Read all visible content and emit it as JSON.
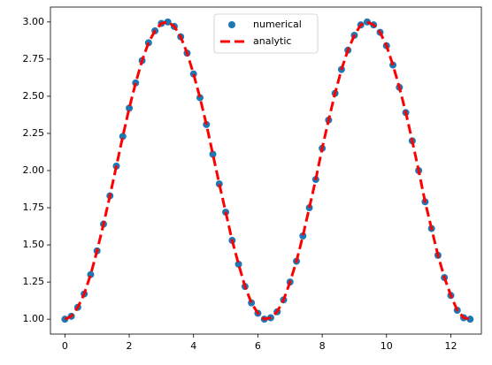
{
  "chart_data": {
    "type": "line",
    "x": [
      0,
      0.2,
      0.4,
      0.6,
      0.8,
      1.0,
      1.2,
      1.4,
      1.6,
      1.8,
      2.0,
      2.2,
      2.4,
      2.6,
      2.8,
      3.0,
      3.2,
      3.4,
      3.6,
      3.8,
      4.0,
      4.2,
      4.4,
      4.6,
      4.8,
      5.0,
      5.2,
      5.4,
      5.6,
      5.8,
      6.0,
      6.2,
      6.4,
      6.6,
      6.8,
      7.0,
      7.2,
      7.4,
      7.6,
      7.8,
      8.0,
      8.2,
      8.4,
      8.6,
      8.8,
      9.0,
      9.2,
      9.4,
      9.6,
      9.8,
      10.0,
      10.2,
      10.4,
      10.6,
      10.8,
      11.0,
      11.2,
      11.4,
      11.6,
      11.8,
      12.0,
      12.2,
      12.4,
      12.6
    ],
    "series": [
      {
        "name": "numerical",
        "color": "#1f77b4",
        "style": "markers",
        "values": [
          1.0,
          1.02,
          1.08,
          1.17,
          1.3,
          1.46,
          1.64,
          1.83,
          2.03,
          2.23,
          2.42,
          2.59,
          2.74,
          2.86,
          2.94,
          2.99,
          3.0,
          2.97,
          2.9,
          2.79,
          2.65,
          2.49,
          2.31,
          2.11,
          1.91,
          1.72,
          1.53,
          1.37,
          1.22,
          1.11,
          1.04,
          1.0,
          1.01,
          1.05,
          1.13,
          1.25,
          1.39,
          1.56,
          1.75,
          1.94,
          2.15,
          2.34,
          2.52,
          2.68,
          2.81,
          2.91,
          2.98,
          3.0,
          2.98,
          2.93,
          2.84,
          2.71,
          2.56,
          2.39,
          2.2,
          2.0,
          1.79,
          1.61,
          1.43,
          1.28,
          1.16,
          1.06,
          1.01,
          1.0
        ]
      },
      {
        "name": "analytic",
        "color": "#ff0000",
        "style": "dashed",
        "values": [
          1.0,
          1.02,
          1.08,
          1.17,
          1.3,
          1.46,
          1.64,
          1.83,
          2.03,
          2.23,
          2.42,
          2.59,
          2.74,
          2.86,
          2.94,
          2.99,
          3.0,
          2.97,
          2.9,
          2.79,
          2.65,
          2.49,
          2.31,
          2.11,
          1.91,
          1.72,
          1.53,
          1.37,
          1.22,
          1.11,
          1.04,
          1.0,
          1.01,
          1.05,
          1.13,
          1.25,
          1.39,
          1.56,
          1.75,
          1.94,
          2.15,
          2.34,
          2.52,
          2.68,
          2.81,
          2.91,
          2.98,
          3.0,
          2.98,
          2.93,
          2.84,
          2.71,
          2.56,
          2.39,
          2.2,
          2.0,
          1.79,
          1.61,
          1.43,
          1.28,
          1.16,
          1.06,
          1.01,
          1.0
        ]
      }
    ],
    "xlim": [
      -0.45,
      12.95
    ],
    "xticks": [
      0,
      2,
      4,
      6,
      8,
      10,
      12
    ],
    "ylim": [
      0.9,
      3.1
    ],
    "yticks": [
      {
        "value": 1.0,
        "label": "1.00"
      },
      {
        "value": 1.25,
        "label": "1.25"
      },
      {
        "value": 1.5,
        "label": "1.50"
      },
      {
        "value": 1.75,
        "label": "1.75"
      },
      {
        "value": 2.0,
        "label": "2.00"
      },
      {
        "value": 2.25,
        "label": "2.25"
      },
      {
        "value": 2.5,
        "label": "2.50"
      },
      {
        "value": 2.75,
        "label": "2.75"
      },
      {
        "value": 3.0,
        "label": "3.00"
      }
    ],
    "legend": "upper center",
    "grid": false
  }
}
